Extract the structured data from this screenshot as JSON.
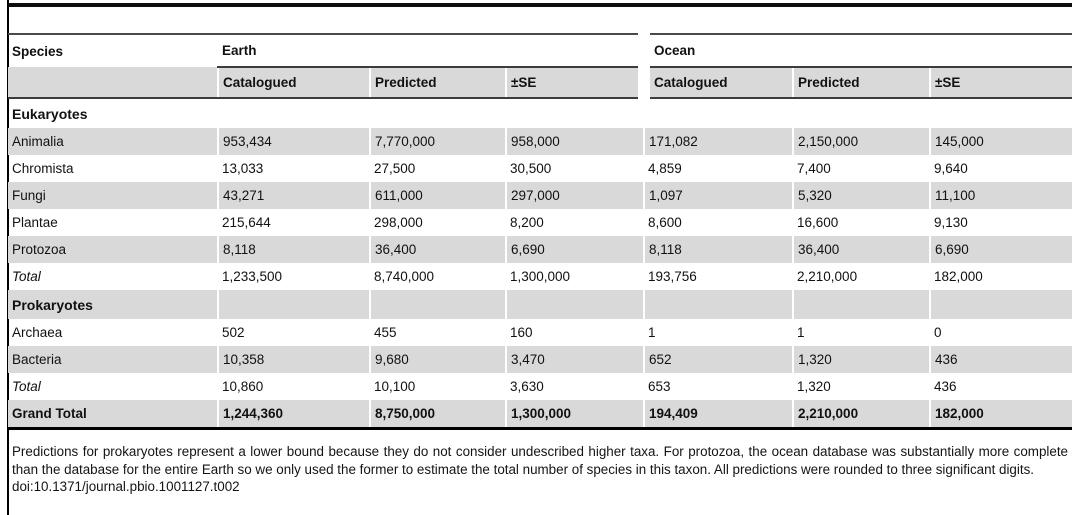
{
  "table": {
    "header": {
      "species": "Species",
      "earth": "Earth",
      "ocean": "Ocean",
      "catalogued": "Catalogued",
      "predicted": "Predicted",
      "se": "±SE"
    },
    "rows": [
      {
        "label": "Eukaryotes",
        "type": "section",
        "earth": [
          "",
          "",
          ""
        ],
        "ocean": [
          "",
          "",
          ""
        ]
      },
      {
        "label": "Animalia",
        "type": "data",
        "earth": [
          "953,434",
          "7,770,000",
          "958,000"
        ],
        "ocean": [
          "171,082",
          "2,150,000",
          "145,000"
        ]
      },
      {
        "label": "Chromista",
        "type": "data",
        "earth": [
          "13,033",
          "27,500",
          "30,500"
        ],
        "ocean": [
          "4,859",
          "7,400",
          "9,640"
        ]
      },
      {
        "label": "Fungi",
        "type": "data",
        "earth": [
          "43,271",
          "611,000",
          "297,000"
        ],
        "ocean": [
          "1,097",
          "5,320",
          "11,100"
        ]
      },
      {
        "label": "Plantae",
        "type": "data",
        "earth": [
          "215,644",
          "298,000",
          "8,200"
        ],
        "ocean": [
          "8,600",
          "16,600",
          "9,130"
        ]
      },
      {
        "label": "Protozoa",
        "type": "data",
        "earth": [
          "8,118",
          "36,400",
          "6,690"
        ],
        "ocean": [
          "8,118",
          "36,400",
          "6,690"
        ]
      },
      {
        "label": "Total",
        "type": "total",
        "earth": [
          "1,233,500",
          "8,740,000",
          "1,300,000"
        ],
        "ocean": [
          "193,756",
          "2,210,000",
          "182,000"
        ]
      },
      {
        "label": "Prokaryotes",
        "type": "section",
        "earth": [
          "",
          "",
          ""
        ],
        "ocean": [
          "",
          "",
          ""
        ]
      },
      {
        "label": "Archaea",
        "type": "data",
        "earth": [
          "502",
          "455",
          "160"
        ],
        "ocean": [
          "1",
          "1",
          "0"
        ]
      },
      {
        "label": "Bacteria",
        "type": "data",
        "earth": [
          "10,358",
          "9,680",
          "3,470"
        ],
        "ocean": [
          "652",
          "1,320",
          "436"
        ]
      },
      {
        "label": "Total",
        "type": "total",
        "earth": [
          "10,860",
          "10,100",
          "3,630"
        ],
        "ocean": [
          "653",
          "1,320",
          "436"
        ]
      },
      {
        "label": "Grand Total",
        "type": "grand",
        "earth": [
          "1,244,360",
          "8,750,000",
          "1,300,000"
        ],
        "ocean": [
          "194,409",
          "2,210,000",
          "182,000"
        ]
      }
    ]
  },
  "footnote": {
    "text": "Predictions for prokaryotes represent a lower bound because they do not consider undescribed higher taxa. For protozoa, the ocean database was substantially more complete than the database for the entire Earth so we only used the former to estimate the total number of species in this taxon. All predictions were rounded to three significant digits.",
    "doi": "doi:10.1371/journal.pbio.1001127.t002"
  },
  "colors": {
    "row_shade": "#d9d9d9",
    "rule_dark": "#3c3c3c",
    "rule_black": "#000000"
  }
}
